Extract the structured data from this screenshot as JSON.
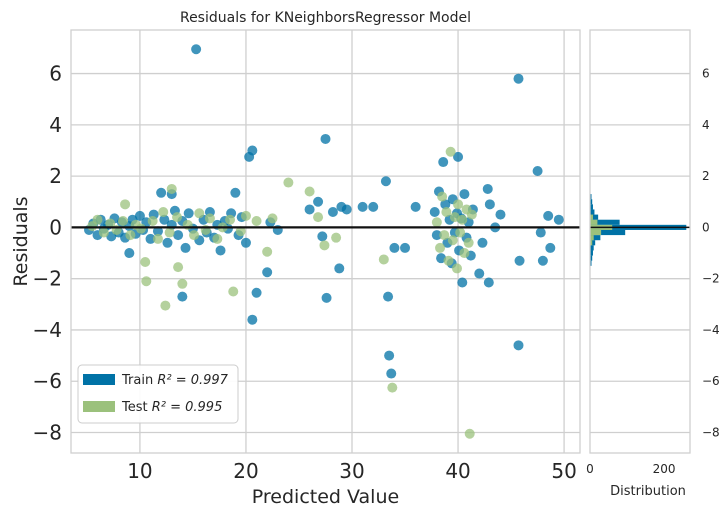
{
  "chart_data": {
    "type": "scatter",
    "title": "Residuals for KNeighborsRegressor Model",
    "xlabel": "Predicted Value",
    "ylabel": "Residuals",
    "xlim": [
      3.5,
      51.5
    ],
    "ylim": [
      -8.8,
      7.7
    ],
    "xticks": [
      10,
      20,
      30,
      40,
      50
    ],
    "yticks": [
      -8,
      -6,
      -4,
      -2,
      0,
      2,
      4,
      6
    ],
    "grid": true,
    "zero_line": 0,
    "legend_position": "lower-left",
    "legend": [
      {
        "series": "train",
        "label": "Train",
        "stat": "R² = 0.997"
      },
      {
        "series": "test",
        "label": "Test",
        "stat": "R² = 0.995"
      }
    ],
    "series": [
      {
        "name": "Train",
        "key": "train",
        "color": "#0072a6",
        "points": [
          [
            5.2,
            -0.1
          ],
          [
            5.6,
            0.15
          ],
          [
            6.0,
            -0.3
          ],
          [
            6.3,
            0.3
          ],
          [
            6.6,
            -0.05
          ],
          [
            7.0,
            0.1
          ],
          [
            7.3,
            -0.35
          ],
          [
            7.6,
            0.35
          ],
          [
            8.0,
            -0.2
          ],
          [
            8.3,
            0.2
          ],
          [
            8.6,
            -0.4
          ],
          [
            9.0,
            0.05
          ],
          [
            9.3,
            0.3
          ],
          [
            9.6,
            -0.25
          ],
          [
            10.0,
            0.45
          ],
          [
            10.3,
            -0.1
          ],
          [
            10.6,
            0.2
          ],
          [
            11.0,
            -0.45
          ],
          [
            11.3,
            0.5
          ],
          [
            11.7,
            -0.15
          ],
          [
            12.0,
            1.35
          ],
          [
            12.3,
            0.3
          ],
          [
            12.6,
            -0.6
          ],
          [
            13.0,
            0.1
          ],
          [
            13.3,
            0.65
          ],
          [
            13.6,
            -0.3
          ],
          [
            14.0,
            0.25
          ],
          [
            14.3,
            -0.8
          ],
          [
            14.6,
            0.55
          ],
          [
            15.0,
            -0.05
          ],
          [
            15.3,
            6.95
          ],
          [
            15.6,
            -0.5
          ],
          [
            16.0,
            0.3
          ],
          [
            16.3,
            -0.2
          ],
          [
            16.6,
            0.6
          ],
          [
            17.0,
            -0.4
          ],
          [
            17.3,
            0.1
          ],
          [
            17.6,
            -0.9
          ],
          [
            18.0,
            0.25
          ],
          [
            18.3,
            -0.05
          ],
          [
            18.6,
            0.55
          ],
          [
            19.0,
            1.35
          ],
          [
            19.3,
            -0.3
          ],
          [
            19.6,
            0.4
          ],
          [
            20.0,
            -0.6
          ],
          [
            20.3,
            2.75
          ],
          [
            20.6,
            3.0
          ],
          [
            21.0,
            -2.55
          ],
          [
            20.6,
            -3.6
          ],
          [
            22.0,
            -1.75
          ],
          [
            22.3,
            0.2
          ],
          [
            23.0,
            -0.1
          ],
          [
            14.0,
            -2.7
          ],
          [
            9.0,
            -1.0
          ],
          [
            13.0,
            1.3
          ],
          [
            26.0,
            0.7
          ],
          [
            26.8,
            1.0
          ],
          [
            27.2,
            -0.35
          ],
          [
            27.5,
            3.45
          ],
          [
            27.6,
            -2.75
          ],
          [
            28.2,
            0.6
          ],
          [
            28.8,
            -1.6
          ],
          [
            29.0,
            0.8
          ],
          [
            29.5,
            0.7
          ],
          [
            31.0,
            0.8
          ],
          [
            32.0,
            0.8
          ],
          [
            33.2,
            1.8
          ],
          [
            33.4,
            -2.7
          ],
          [
            33.5,
            -5.0
          ],
          [
            33.7,
            -5.7
          ],
          [
            34.0,
            -0.8
          ],
          [
            35.0,
            -0.8
          ],
          [
            36.0,
            0.8
          ],
          [
            37.8,
            0.6
          ],
          [
            38.0,
            -0.3
          ],
          [
            38.2,
            1.4
          ],
          [
            38.4,
            -1.2
          ],
          [
            38.6,
            2.55
          ],
          [
            38.8,
            0.9
          ],
          [
            39.0,
            -0.6
          ],
          [
            39.2,
            0.3
          ],
          [
            39.4,
            -1.4
          ],
          [
            39.5,
            1.1
          ],
          [
            39.7,
            -0.2
          ],
          [
            39.9,
            0.55
          ],
          [
            40.0,
            2.75
          ],
          [
            40.1,
            -0.9
          ],
          [
            40.3,
            0.35
          ],
          [
            40.4,
            -2.15
          ],
          [
            40.6,
            1.3
          ],
          [
            40.8,
            -0.4
          ],
          [
            41.0,
            0.2
          ],
          [
            41.2,
            -1.1
          ],
          [
            41.4,
            0.7
          ],
          [
            42.0,
            -1.8
          ],
          [
            42.3,
            -0.6
          ],
          [
            42.8,
            1.5
          ],
          [
            42.9,
            -2.15
          ],
          [
            43.0,
            0.9
          ],
          [
            43.5,
            0.0
          ],
          [
            44.0,
            0.5
          ],
          [
            45.7,
            5.8
          ],
          [
            45.7,
            -4.6
          ],
          [
            45.8,
            -1.3
          ],
          [
            47.5,
            2.2
          ],
          [
            47.8,
            -0.2
          ],
          [
            48.0,
            -1.3
          ],
          [
            48.5,
            0.45
          ],
          [
            48.7,
            -0.8
          ],
          [
            49.5,
            0.3
          ]
        ]
      },
      {
        "name": "Test",
        "key": "test",
        "color": "#9bc17c",
        "points": [
          [
            5.5,
            0.05
          ],
          [
            6.0,
            0.3
          ],
          [
            6.6,
            -0.2
          ],
          [
            7.2,
            0.15
          ],
          [
            7.8,
            -0.1
          ],
          [
            8.4,
            0.25
          ],
          [
            8.6,
            0.9
          ],
          [
            9.1,
            -0.3
          ],
          [
            9.6,
            0.1
          ],
          [
            10.1,
            -0.05
          ],
          [
            10.5,
            -1.35
          ],
          [
            10.6,
            -2.1
          ],
          [
            11.2,
            0.25
          ],
          [
            11.7,
            -0.45
          ],
          [
            12.2,
            0.6
          ],
          [
            12.4,
            -3.05
          ],
          [
            12.8,
            -0.2
          ],
          [
            13.0,
            1.5
          ],
          [
            13.5,
            0.4
          ],
          [
            13.6,
            -1.55
          ],
          [
            14.0,
            -2.2
          ],
          [
            14.5,
            0.1
          ],
          [
            15.1,
            -0.3
          ],
          [
            15.6,
            0.55
          ],
          [
            16.2,
            -0.1
          ],
          [
            16.6,
            0.35
          ],
          [
            17.3,
            -0.45
          ],
          [
            17.8,
            0.0
          ],
          [
            18.5,
            0.3
          ],
          [
            18.8,
            -2.5
          ],
          [
            19.5,
            -0.15
          ],
          [
            20.0,
            0.45
          ],
          [
            21.0,
            0.25
          ],
          [
            22.0,
            -0.95
          ],
          [
            22.5,
            0.35
          ],
          [
            24.0,
            1.75
          ],
          [
            26.0,
            1.4
          ],
          [
            26.8,
            0.4
          ],
          [
            27.4,
            -0.7
          ],
          [
            28.5,
            -0.4
          ],
          [
            33.0,
            -1.25
          ],
          [
            33.8,
            -6.25
          ],
          [
            38.0,
            0.2
          ],
          [
            38.3,
            -0.8
          ],
          [
            38.5,
            1.2
          ],
          [
            38.7,
            -0.3
          ],
          [
            38.9,
            0.6
          ],
          [
            39.1,
            -1.3
          ],
          [
            39.3,
            2.95
          ],
          [
            39.5,
            -0.5
          ],
          [
            39.7,
            0.4
          ],
          [
            39.9,
            -1.6
          ],
          [
            40.0,
            0.9
          ],
          [
            40.2,
            -0.2
          ],
          [
            40.4,
            0.3
          ],
          [
            40.6,
            -1.0
          ],
          [
            40.8,
            0.7
          ],
          [
            41.0,
            -0.6
          ],
          [
            41.1,
            -8.05
          ],
          [
            41.3,
            0.5
          ]
        ]
      }
    ],
    "side_panel": {
      "xlabel": "Distribution",
      "xlim": [
        0,
        270
      ],
      "xticks": [
        0,
        200
      ],
      "yticks": [
        -8,
        -6,
        -4,
        -2,
        0,
        2,
        4,
        6
      ],
      "histogram": {
        "bin_width": 0.2,
        "train": [
          {
            "y": -1.4,
            "count": 4
          },
          {
            "y": -1.2,
            "count": 6
          },
          {
            "y": -1.0,
            "count": 8
          },
          {
            "y": -0.8,
            "count": 10
          },
          {
            "y": -0.6,
            "count": 14
          },
          {
            "y": -0.4,
            "count": 28
          },
          {
            "y": -0.2,
            "count": 95
          },
          {
            "y": 0.0,
            "count": 260
          },
          {
            "y": 0.2,
            "count": 80
          },
          {
            "y": 0.4,
            "count": 22
          },
          {
            "y": 0.6,
            "count": 12
          },
          {
            "y": 0.8,
            "count": 8
          },
          {
            "y": 1.0,
            "count": 6
          },
          {
            "y": 1.2,
            "count": 4
          }
        ],
        "test": [
          {
            "y": -0.6,
            "count": 6
          },
          {
            "y": -0.4,
            "count": 10
          },
          {
            "y": -0.2,
            "count": 30
          },
          {
            "y": 0.0,
            "count": 60
          },
          {
            "y": 0.2,
            "count": 20
          },
          {
            "y": 0.4,
            "count": 8
          }
        ]
      }
    }
  }
}
